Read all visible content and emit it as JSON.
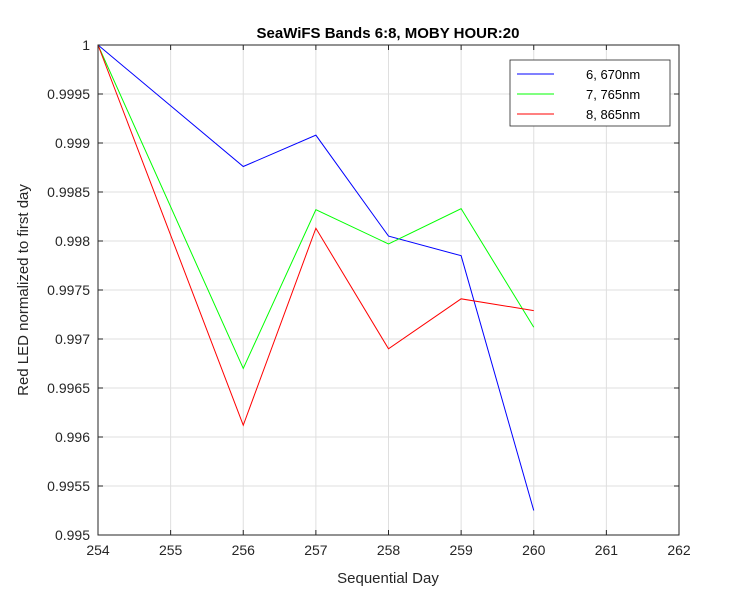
{
  "chart_data": {
    "type": "line",
    "title": "SeaWiFS Bands 6:8, MOBY HOUR:20",
    "xlabel": "Sequential Day",
    "ylabel": "Red LED normalized to first day",
    "xlim": [
      254,
      262
    ],
    "ylim": [
      0.995,
      1
    ],
    "xticks": [
      254,
      255,
      256,
      257,
      258,
      259,
      260,
      261,
      262
    ],
    "yticks": [
      0.995,
      0.9955,
      0.996,
      0.9965,
      0.997,
      0.9975,
      0.998,
      0.9985,
      0.999,
      0.9995,
      1
    ],
    "ytick_labels": [
      "0.995",
      "0.9955",
      "0.996",
      "0.9965",
      "0.997",
      "0.9975",
      "0.998",
      "0.9985",
      "0.999",
      "0.9995",
      "1"
    ],
    "grid": true,
    "legend_position": "top-right",
    "series": [
      {
        "name": "6, 670nm",
        "color": "#0000ff",
        "x": [
          254,
          256,
          257,
          258,
          259,
          260
        ],
        "y": [
          1.0,
          0.99876,
          0.99908,
          0.99805,
          0.99785,
          0.99525
        ]
      },
      {
        "name": "7, 765nm",
        "color": "#00ff00",
        "x": [
          254,
          256,
          257,
          258,
          259,
          260
        ],
        "y": [
          1.0,
          0.9967,
          0.99832,
          0.99797,
          0.99833,
          0.99712
        ]
      },
      {
        "name": "8, 865nm",
        "color": "#ff0000",
        "x": [
          254,
          256,
          257,
          258,
          259,
          260
        ],
        "y": [
          1.0,
          0.99612,
          0.99813,
          0.9969,
          0.99741,
          0.99729
        ]
      }
    ]
  }
}
